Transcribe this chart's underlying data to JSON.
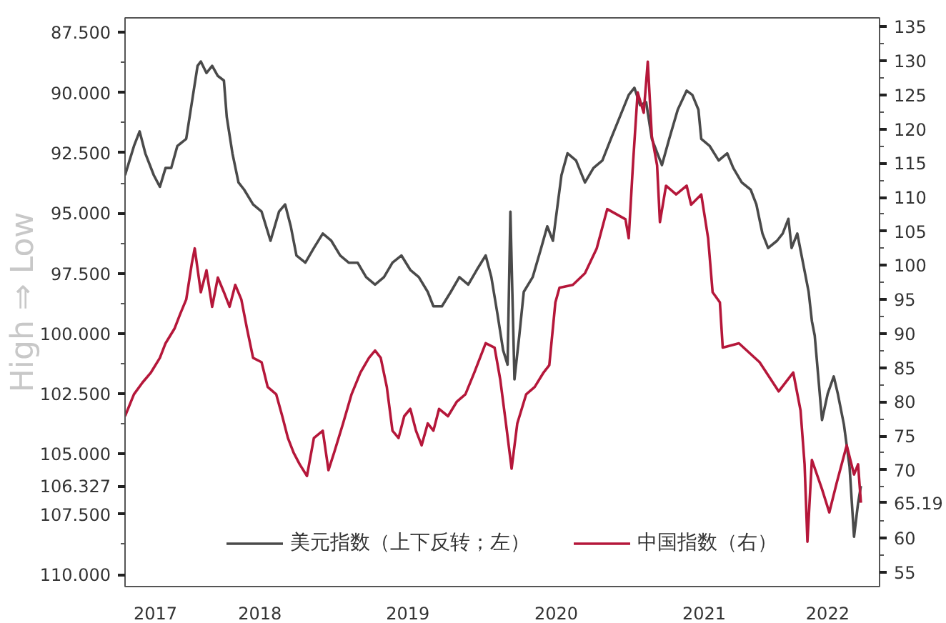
{
  "chart_data": {
    "type": "line",
    "ylabel": "High ⇒ Low",
    "legend": "bottom",
    "grid": false,
    "marker": "none",
    "line_style": "solid",
    "xlim": [
      "2017-08-03",
      "2022-09-08"
    ],
    "xticks": [
      {
        "value": "2017-10-17",
        "label": "2017"
      },
      {
        "value": "2018-07-02",
        "label": "2018"
      },
      {
        "value": "2019-07-02",
        "label": "2019"
      },
      {
        "value": "2020-07-02",
        "label": "2020"
      },
      {
        "value": "2021-07-02",
        "label": "2021"
      },
      {
        "value": "2022-05-03",
        "label": "2022"
      }
    ],
    "ylim": [
      110.5,
      86.9
    ],
    "yticks": [
      {
        "value": 87.5,
        "label": "87.500"
      },
      {
        "value": 88.75,
        "label": null
      },
      {
        "value": 90,
        "label": "90.000"
      },
      {
        "value": 91.25,
        "label": null
      },
      {
        "value": 92.5,
        "label": "92.500"
      },
      {
        "value": 93.75,
        "label": null
      },
      {
        "value": 95,
        "label": "95.000"
      },
      {
        "value": 96.25,
        "label": null
      },
      {
        "value": 97.5,
        "label": "97.500"
      },
      {
        "value": 98.75,
        "label": null
      },
      {
        "value": 100,
        "label": "100.000"
      },
      {
        "value": 101.25,
        "label": null
      },
      {
        "value": 102.5,
        "label": "102.500"
      },
      {
        "value": 103.75,
        "label": null
      },
      {
        "value": 105,
        "label": "105.000"
      },
      {
        "value": 106.327,
        "label": "106.327"
      },
      {
        "value": 107.5,
        "label": "107.500"
      },
      {
        "value": 108.75,
        "label": null
      },
      {
        "value": 110,
        "label": "110.000"
      }
    ],
    "y2lim": [
      52.9,
      136.3
    ],
    "y2ticks": [
      55,
      {
        "value": 57.5,
        "label": null
      },
      60,
      {
        "value": 62.5,
        "label": null
      },
      {
        "value": 65.19,
        "label": "65.19"
      },
      {
        "value": 67.5,
        "label": null
      },
      70,
      {
        "value": 72.5,
        "label": null
      },
      75,
      {
        "value": 77.5,
        "label": null
      },
      80,
      {
        "value": 82.5,
        "label": null
      },
      85,
      {
        "value": 87.5,
        "label": null
      },
      90,
      {
        "value": 92.5,
        "label": null
      },
      95,
      {
        "value": 97.5,
        "label": null
      },
      100,
      {
        "value": 102.5,
        "label": null
      },
      105,
      {
        "value": 107.5,
        "label": null
      },
      110,
      {
        "value": 112.5,
        "label": null
      },
      115,
      {
        "value": 117.5,
        "label": null
      },
      120,
      {
        "value": 122.5,
        "label": null
      },
      125,
      {
        "value": 127.5,
        "label": null
      },
      130,
      {
        "value": 132.5,
        "label": null
      },
      135
    ],
    "series": [
      {
        "name": "美元指数（上下反转；左）",
        "color": "#4a4a4a",
        "axis": "y",
        "x": [
          "2017-08-03",
          "2017-08-25",
          "2017-09-08",
          "2017-09-22",
          "2017-10-13",
          "2017-10-28",
          "2017-11-11",
          "2017-11-25",
          "2017-12-10",
          "2018-01-01",
          "2018-01-15",
          "2018-01-29",
          "2018-02-06",
          "2018-02-20",
          "2018-03-06",
          "2018-03-20",
          "2018-04-04",
          "2018-04-11",
          "2018-04-25",
          "2018-05-10",
          "2018-05-24",
          "2018-06-15",
          "2018-07-06",
          "2018-07-28",
          "2018-08-18",
          "2018-09-02",
          "2018-09-16",
          "2018-09-30",
          "2018-10-22",
          "2018-11-12",
          "2018-12-04",
          "2018-12-25",
          "2019-01-16",
          "2019-02-06",
          "2019-02-28",
          "2019-03-21",
          "2019-04-12",
          "2019-05-04",
          "2019-05-25",
          "2019-06-16",
          "2019-07-08",
          "2019-07-29",
          "2019-08-20",
          "2019-09-03",
          "2019-09-24",
          "2019-10-16",
          "2019-11-06",
          "2019-11-28",
          "2019-12-19",
          "2020-01-10",
          "2020-01-24",
          "2020-02-08",
          "2020-02-22",
          "2020-03-04",
          "2020-03-11",
          "2020-03-21",
          "2020-04-02",
          "2020-04-13",
          "2020-05-05",
          "2020-05-26",
          "2020-06-10",
          "2020-06-24",
          "2020-07-15",
          "2020-07-30",
          "2020-08-20",
          "2020-09-11",
          "2020-10-02",
          "2020-10-24",
          "2020-11-14",
          "2020-12-06",
          "2020-12-28",
          "2021-01-11",
          "2021-01-25",
          "2021-02-09",
          "2021-02-23",
          "2021-03-20",
          "2021-04-07",
          "2021-04-28",
          "2021-05-20",
          "2021-06-03",
          "2021-06-18",
          "2021-06-25",
          "2021-07-16",
          "2021-08-07",
          "2021-08-28",
          "2021-09-12",
          "2021-10-03",
          "2021-10-25",
          "2021-11-08",
          "2021-11-23",
          "2021-12-07",
          "2021-12-29",
          "2022-01-12",
          "2022-01-26",
          "2022-02-03",
          "2022-02-17",
          "2022-03-03",
          "2022-03-17",
          "2022-03-25",
          "2022-04-01",
          "2022-04-19",
          "2022-05-03",
          "2022-05-18",
          "2022-05-28",
          "2022-06-12",
          "2022-06-26",
          "2022-07-07",
          "2022-07-17",
          "2022-07-24"
        ],
        "values": [
          93.43,
          92.22,
          91.61,
          92.52,
          93.43,
          93.91,
          93.13,
          93.13,
          92.22,
          91.92,
          90.4,
          88.89,
          88.71,
          89.19,
          88.89,
          89.31,
          89.5,
          91.01,
          92.52,
          93.73,
          94.03,
          94.64,
          94.94,
          96.15,
          94.94,
          94.64,
          95.55,
          96.76,
          97.06,
          96.45,
          95.85,
          96.15,
          96.76,
          97.06,
          97.06,
          97.66,
          97.97,
          97.66,
          97.06,
          96.76,
          97.36,
          97.66,
          98.27,
          98.87,
          98.87,
          98.27,
          97.66,
          97.97,
          97.36,
          96.76,
          97.66,
          99.18,
          100.69,
          101.29,
          94.94,
          101.9,
          100.08,
          98.27,
          97.66,
          96.45,
          95.55,
          96.15,
          93.43,
          92.52,
          92.82,
          93.73,
          93.13,
          92.82,
          91.92,
          91.01,
          90.1,
          89.8,
          90.52,
          90.4,
          91.92,
          93.01,
          91.92,
          90.71,
          89.92,
          90.1,
          90.71,
          91.92,
          92.22,
          92.82,
          92.52,
          93.13,
          93.73,
          94.03,
          94.64,
          95.85,
          96.45,
          96.15,
          95.85,
          95.24,
          96.45,
          95.85,
          97.06,
          98.27,
          99.48,
          100.08,
          103.59,
          102.5,
          101.78,
          102.5,
          103.77,
          105.53,
          108.43,
          107.04,
          106.327
        ]
      },
      {
        "name": "中国指数（右）",
        "color": "#b5173a",
        "axis": "y2",
        "x": [
          "2017-08-03",
          "2017-08-25",
          "2017-09-15",
          "2017-10-06",
          "2017-10-28",
          "2017-11-11",
          "2017-12-03",
          "2017-12-17",
          "2018-01-01",
          "2018-01-15",
          "2018-01-22",
          "2018-02-06",
          "2018-02-20",
          "2018-03-06",
          "2018-03-20",
          "2018-04-04",
          "2018-04-18",
          "2018-05-02",
          "2018-05-17",
          "2018-05-31",
          "2018-06-15",
          "2018-07-06",
          "2018-07-21",
          "2018-08-11",
          "2018-08-26",
          "2018-09-09",
          "2018-09-23",
          "2018-10-08",
          "2018-10-26",
          "2018-11-12",
          "2018-12-04",
          "2018-12-18",
          "2019-01-01",
          "2019-01-23",
          "2019-02-13",
          "2019-03-07",
          "2019-03-28",
          "2019-04-12",
          "2019-04-26",
          "2019-05-11",
          "2019-05-25",
          "2019-06-09",
          "2019-06-23",
          "2019-07-08",
          "2019-07-22",
          "2019-08-05",
          "2019-08-20",
          "2019-09-03",
          "2019-09-17",
          "2019-10-09",
          "2019-10-31",
          "2019-11-21",
          "2019-12-13",
          "2019-12-27",
          "2020-01-10",
          "2020-02-01",
          "2020-02-15",
          "2020-02-29",
          "2020-03-14",
          "2020-03-28",
          "2020-04-19",
          "2020-05-10",
          "2020-06-01",
          "2020-06-15",
          "2020-06-30",
          "2020-07-10",
          "2020-08-12",
          "2020-09-11",
          "2020-10-10",
          "2020-11-05",
          "2020-12-20",
          "2020-12-28",
          "2021-01-08",
          "2021-01-19",
          "2021-02-03",
          "2021-02-13",
          "2021-02-23",
          "2021-03-08",
          "2021-03-15",
          "2021-03-30",
          "2021-04-24",
          "2021-05-20",
          "2021-05-31",
          "2021-06-25",
          "2021-07-12",
          "2021-07-23",
          "2021-08-10",
          "2021-08-17",
          "2021-09-26",
          "2021-11-16",
          "2022-01-02",
          "2022-02-07",
          "2022-02-25",
          "2022-03-07",
          "2022-03-14",
          "2022-03-25",
          "2022-04-19",
          "2022-05-07",
          "2022-05-25",
          "2022-06-19",
          "2022-07-07",
          "2022-07-17",
          "2022-07-24"
        ],
        "values": [
          77.89,
          81.1,
          82.81,
          84.3,
          86.44,
          88.58,
          90.72,
          92.86,
          95.0,
          100.35,
          102.49,
          96.07,
          99.28,
          93.93,
          98.21,
          96.07,
          93.93,
          97.14,
          95.0,
          90.72,
          86.44,
          85.8,
          82.17,
          81.1,
          77.89,
          74.68,
          72.54,
          70.83,
          69.12,
          74.68,
          75.75,
          69.97,
          72.54,
          76.82,
          81.1,
          84.3,
          86.44,
          87.51,
          86.44,
          82.17,
          75.75,
          74.68,
          77.89,
          78.96,
          75.75,
          73.61,
          76.82,
          75.75,
          78.96,
          77.89,
          80.03,
          81.1,
          84.3,
          86.44,
          88.58,
          87.94,
          83.24,
          76.82,
          70.19,
          76.82,
          81.1,
          82.17,
          84.3,
          85.37,
          94.57,
          96.71,
          97.14,
          98.85,
          102.49,
          108.26,
          106.76,
          103.98,
          115.32,
          125.37,
          122.38,
          129.87,
          118.96,
          114.68,
          106.34,
          111.68,
          110.4,
          111.68,
          108.9,
          110.4,
          103.98,
          96.07,
          94.57,
          87.94,
          88.58,
          85.8,
          81.52,
          84.3,
          78.74,
          70.83,
          59.49,
          71.47,
          67.19,
          63.77,
          68.05,
          73.61,
          69.33,
          70.83,
          65.19
        ]
      }
    ]
  }
}
